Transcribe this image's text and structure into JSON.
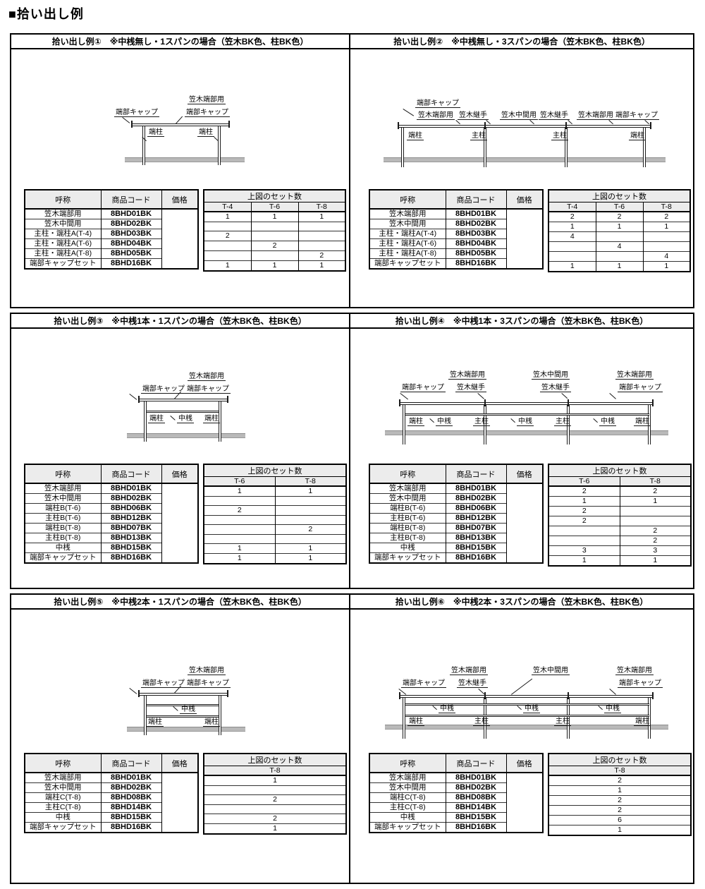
{
  "page": {
    "heading": "■拾い出し例"
  },
  "labels": {
    "end_cap": "端部キャップ",
    "kasagi_end": "笠木端部用",
    "kasagi_joint": "笠木継手",
    "kasagi_mid": "笠木中間用",
    "end_post": "端柱",
    "main_post": "主柱",
    "mid_rail": "中桟"
  },
  "table": {
    "name": "呼称",
    "code": "商品コード",
    "price": "価格",
    "set_count": "上図のセット数"
  },
  "panels": [
    {
      "title": "拾い出し例①　※中桟無し・1スパンの場合（笠木BK色、柱BK色）",
      "size_cols": [
        "T-4",
        "T-6",
        "T-8"
      ],
      "rows": [
        {
          "name": "笠木端部用",
          "code": "8BHD01BK",
          "counts": [
            "1",
            "1",
            "1"
          ]
        },
        {
          "name": "笠木中間用",
          "code": "8BHD02BK",
          "counts": [
            "",
            "",
            ""
          ]
        },
        {
          "name": "主柱・端柱A(T-4)",
          "code": "8BHD03BK",
          "counts": [
            "2",
            "",
            ""
          ]
        },
        {
          "name": "主柱・端柱A(T-6)",
          "code": "8BHD04BK",
          "counts": [
            "",
            "2",
            ""
          ]
        },
        {
          "name": "主柱・端柱A(T-8)",
          "code": "8BHD05BK",
          "counts": [
            "",
            "",
            "2"
          ]
        },
        {
          "name": "端部キャップセット",
          "code": "8BHD16BK",
          "counts": [
            "1",
            "1",
            "1"
          ]
        }
      ]
    },
    {
      "title": "拾い出し例②　※中桟無し・3スパンの場合（笠木BK色、柱BK色）",
      "size_cols": [
        "T-4",
        "T-6",
        "T-8"
      ],
      "rows": [
        {
          "name": "笠木端部用",
          "code": "8BHD01BK",
          "counts": [
            "2",
            "2",
            "2"
          ]
        },
        {
          "name": "笠木中間用",
          "code": "8BHD02BK",
          "counts": [
            "1",
            "1",
            "1"
          ]
        },
        {
          "name": "主柱・端柱A(T-4)",
          "code": "8BHD03BK",
          "counts": [
            "4",
            "",
            ""
          ]
        },
        {
          "name": "主柱・端柱A(T-6)",
          "code": "8BHD04BK",
          "counts": [
            "",
            "4",
            ""
          ]
        },
        {
          "name": "主柱・端柱A(T-8)",
          "code": "8BHD05BK",
          "counts": [
            "",
            "",
            "4"
          ]
        },
        {
          "name": "端部キャップセット",
          "code": "8BHD16BK",
          "counts": [
            "1",
            "1",
            "1"
          ]
        }
      ]
    },
    {
      "title": "拾い出し例③　※中桟1本・1スパンの場合（笠木BK色、柱BK色）",
      "size_cols": [
        "T-6",
        "T-8"
      ],
      "rows": [
        {
          "name": "笠木端部用",
          "code": "8BHD01BK",
          "counts": [
            "1",
            "1"
          ]
        },
        {
          "name": "笠木中間用",
          "code": "8BHD02BK",
          "counts": [
            "",
            ""
          ]
        },
        {
          "name": "端柱B(T-6)",
          "code": "8BHD06BK",
          "counts": [
            "2",
            ""
          ]
        },
        {
          "name": "主柱B(T-6)",
          "code": "8BHD12BK",
          "counts": [
            "",
            ""
          ]
        },
        {
          "name": "端柱B(T-8)",
          "code": "8BHD07BK",
          "counts": [
            "",
            "2"
          ]
        },
        {
          "name": "主柱B(T-8)",
          "code": "8BHD13BK",
          "counts": [
            "",
            ""
          ]
        },
        {
          "name": "中桟",
          "code": "8BHD15BK",
          "counts": [
            "1",
            "1"
          ]
        },
        {
          "name": "端部キャップセット",
          "code": "8BHD16BK",
          "counts": [
            "1",
            "1"
          ]
        }
      ]
    },
    {
      "title": "拾い出し例④　※中桟1本・3スパンの場合（笠木BK色、柱BK色）",
      "size_cols": [
        "T-6",
        "T-8"
      ],
      "rows": [
        {
          "name": "笠木端部用",
          "code": "8BHD01BK",
          "counts": [
            "2",
            "2"
          ]
        },
        {
          "name": "笠木中間用",
          "code": "8BHD02BK",
          "counts": [
            "1",
            "1"
          ]
        },
        {
          "name": "端柱B(T-6)",
          "code": "8BHD06BK",
          "counts": [
            "2",
            ""
          ]
        },
        {
          "name": "主柱B(T-6)",
          "code": "8BHD12BK",
          "counts": [
            "2",
            ""
          ]
        },
        {
          "name": "端柱B(T-8)",
          "code": "8BHD07BK",
          "counts": [
            "",
            "2"
          ]
        },
        {
          "name": "主柱B(T-8)",
          "code": "8BHD13BK",
          "counts": [
            "",
            "2"
          ]
        },
        {
          "name": "中桟",
          "code": "8BHD15BK",
          "counts": [
            "3",
            "3"
          ]
        },
        {
          "name": "端部キャップセット",
          "code": "8BHD16BK",
          "counts": [
            "1",
            "1"
          ]
        }
      ]
    },
    {
      "title": "拾い出し例⑤　※中桟2本・1スパンの場合（笠木BK色、柱BK色）",
      "size_cols": [
        "T-8"
      ],
      "rows": [
        {
          "name": "笠木端部用",
          "code": "8BHD01BK",
          "counts": [
            "1"
          ]
        },
        {
          "name": "笠木中間用",
          "code": "8BHD02BK",
          "counts": [
            ""
          ]
        },
        {
          "name": "端柱C(T-8)",
          "code": "8BHD08BK",
          "counts": [
            "2"
          ]
        },
        {
          "name": "主柱C(T-8)",
          "code": "8BHD14BK",
          "counts": [
            ""
          ]
        },
        {
          "name": "中桟",
          "code": "8BHD15BK",
          "counts": [
            "2"
          ]
        },
        {
          "name": "端部キャップセット",
          "code": "8BHD16BK",
          "counts": [
            "1"
          ]
        }
      ]
    },
    {
      "title": "拾い出し例⑥　※中桟2本・3スパンの場合（笠木BK色、柱BK色）",
      "size_cols": [
        "T-8"
      ],
      "rows": [
        {
          "name": "笠木端部用",
          "code": "8BHD01BK",
          "counts": [
            "2"
          ]
        },
        {
          "name": "笠木中間用",
          "code": "8BHD02BK",
          "counts": [
            "1"
          ]
        },
        {
          "name": "端柱C(T-8)",
          "code": "8BHD08BK",
          "counts": [
            "2"
          ]
        },
        {
          "name": "主柱C(T-8)",
          "code": "8BHD14BK",
          "counts": [
            "2"
          ]
        },
        {
          "name": "中桟",
          "code": "8BHD15BK",
          "counts": [
            "6"
          ]
        },
        {
          "name": "端部キャップセット",
          "code": "8BHD16BK",
          "counts": [
            "1"
          ]
        }
      ]
    }
  ]
}
